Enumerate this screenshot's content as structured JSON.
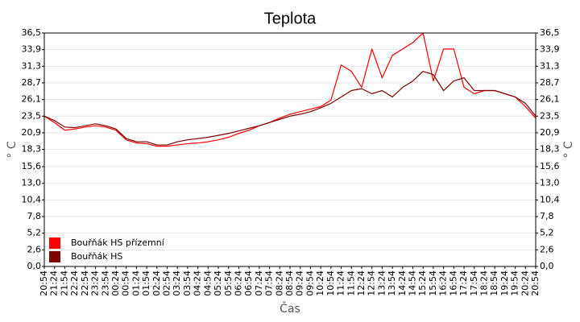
{
  "chart_data": {
    "type": "line",
    "title": "Teplota",
    "xlabel": "Čas",
    "ylabel": "° C",
    "y2label": "° C",
    "categories": [
      "20:54",
      "21:24",
      "21:54",
      "22:24",
      "22:54",
      "23:24",
      "23:54",
      "00:24",
      "00:54",
      "01:24",
      "01:54",
      "02:24",
      "02:54",
      "03:24",
      "03:54",
      "04:24",
      "04:54",
      "05:24",
      "05:54",
      "06:24",
      "06:54",
      "07:24",
      "07:54",
      "08:24",
      "08:54",
      "09:24",
      "09:54",
      "10:24",
      "10:54",
      "11:24",
      "11:54",
      "12:24",
      "12:54",
      "13:24",
      "13:54",
      "14:24",
      "14:54",
      "15:24",
      "15:54",
      "16:24",
      "16:54",
      "17:24",
      "17:54",
      "18:24",
      "18:54",
      "19:24",
      "19:54",
      "20:24",
      "20:54"
    ],
    "series": [
      {
        "name": "Bouřňák HS přízemní",
        "color": "#ff0000",
        "values": [
          23.5,
          22.5,
          21.3,
          21.5,
          21.8,
          22.0,
          21.8,
          21.3,
          19.8,
          19.3,
          19.2,
          18.8,
          18.8,
          19.0,
          19.2,
          19.3,
          19.5,
          19.8,
          20.2,
          20.8,
          21.3,
          22.0,
          22.5,
          23.2,
          23.8,
          24.2,
          24.6,
          25.0,
          26.0,
          31.5,
          30.5,
          28.0,
          34.0,
          29.5,
          33.0,
          34.0,
          35.0,
          36.5,
          29.0,
          34.0,
          34.0,
          28.0,
          27.0,
          27.5,
          27.5,
          27.0,
          26.5,
          25.0,
          23.2
        ]
      },
      {
        "name": "Bouřňák HS",
        "color": "#800000",
        "values": [
          23.5,
          22.8,
          21.8,
          21.7,
          22.0,
          22.3,
          22.0,
          21.5,
          20.0,
          19.5,
          19.5,
          19.0,
          19.0,
          19.5,
          19.8,
          20.0,
          20.2,
          20.5,
          20.8,
          21.2,
          21.6,
          22.0,
          22.5,
          23.0,
          23.5,
          23.8,
          24.2,
          24.8,
          25.5,
          26.5,
          27.5,
          27.8,
          27.0,
          27.5,
          26.5,
          28.0,
          29.0,
          30.5,
          30.0,
          27.5,
          29.0,
          29.5,
          27.5,
          27.5,
          27.5,
          27.0,
          26.5,
          25.5,
          23.5
        ]
      }
    ],
    "ylim": [
      0,
      36.5
    ],
    "yticks": [
      {
        "value": 0,
        "label": "0,0"
      },
      {
        "value": 2.6,
        "label": "2,6"
      },
      {
        "value": 5.2,
        "label": "5,2"
      },
      {
        "value": 7.8,
        "label": "7,8"
      },
      {
        "value": 10.4,
        "label": "10,4"
      },
      {
        "value": 13,
        "label": "13,0"
      },
      {
        "value": 15.6,
        "label": "15,6"
      },
      {
        "value": 18.3,
        "label": "18,3"
      },
      {
        "value": 20.9,
        "label": "20,9"
      },
      {
        "value": 23.5,
        "label": "23,5"
      },
      {
        "value": 26.1,
        "label": "26,1"
      },
      {
        "value": 28.7,
        "label": "28,7"
      },
      {
        "value": 31.3,
        "label": "31,3"
      },
      {
        "value": 33.9,
        "label": "33,9"
      },
      {
        "value": 36.5,
        "label": "36,5"
      }
    ],
    "y2lim": [
      0,
      36.5
    ],
    "y2ticks": [
      {
        "value": 0,
        "label": "0,0"
      },
      {
        "value": 2.6,
        "label": "2,6"
      },
      {
        "value": 5.2,
        "label": "5,2"
      },
      {
        "value": 7.8,
        "label": "7,8"
      },
      {
        "value": 10.4,
        "label": "10,4"
      },
      {
        "value": 13,
        "label": "13,0"
      },
      {
        "value": 15.6,
        "label": "15,6"
      },
      {
        "value": 18.3,
        "label": "18,3"
      },
      {
        "value": 20.9,
        "label": "20,9"
      },
      {
        "value": 23.5,
        "label": "23,5"
      },
      {
        "value": 26.1,
        "label": "26,1"
      },
      {
        "value": 28.7,
        "label": "28,7"
      },
      {
        "value": 31.3,
        "label": "31,3"
      },
      {
        "value": 33.9,
        "label": "33,9"
      },
      {
        "value": 36.5,
        "label": "36,5"
      }
    ],
    "grid": true,
    "legend": "lower left"
  }
}
